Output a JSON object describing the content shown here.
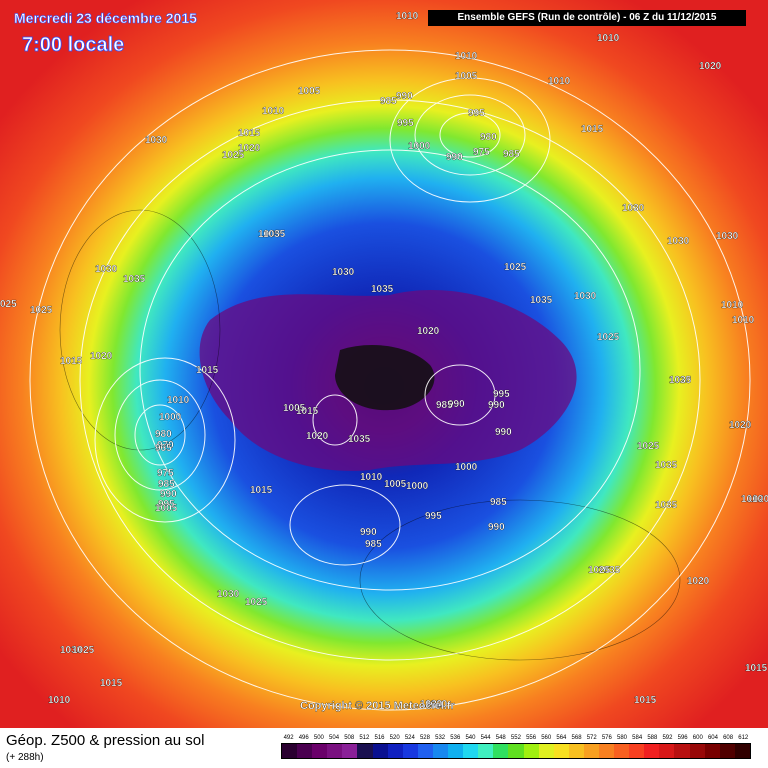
{
  "header": {
    "date": "Mercredi 23 décembre 2015",
    "local_time": "7:00 locale",
    "run_info": "Ensemble GEFS  (Run de contrôle)  -  06 Z du 11/12/2015"
  },
  "footer": {
    "title": "Géop. Z500 & pression au sol",
    "forecast_range": "(+ 288h)",
    "copyright": "Copyright © 2015 Meteociel.fr"
  },
  "scale": {
    "labels": [
      "492",
      "496",
      "500",
      "504",
      "508",
      "512",
      "516",
      "520",
      "524",
      "528",
      "532",
      "536",
      "540",
      "544",
      "548",
      "552",
      "556",
      "560",
      "564",
      "568",
      "572",
      "576",
      "580",
      "584",
      "588",
      "592",
      "596",
      "600",
      "604",
      "608",
      "612"
    ],
    "colors": [
      "#2a0030",
      "#4a0050",
      "#6a006a",
      "#7a1080",
      "#8a2098",
      "#1a1050",
      "#0a1090",
      "#1020c0",
      "#1838e0",
      "#2060f0",
      "#1888f0",
      "#10b0f0",
      "#20d8f0",
      "#40f0c0",
      "#30e060",
      "#60e020",
      "#a0f010",
      "#e0f020",
      "#f8e020",
      "#f8c020",
      "#f8a020",
      "#f88020",
      "#f86020",
      "#f84020",
      "#f02020",
      "#d81818",
      "#b81010",
      "#980808",
      "#780000",
      "#500000",
      "#300000"
    ]
  },
  "pressure_labels": [
    {
      "text": "1030"
    },
    {
      "text": "1010"
    },
    {
      "text": "1005"
    },
    {
      "text": "1015"
    },
    {
      "text": "1025"
    },
    {
      "text": "1020"
    },
    {
      "text": "1010"
    },
    {
      "text": "1005"
    },
    {
      "text": "1010"
    },
    {
      "text": "1010"
    },
    {
      "text": "990"
    },
    {
      "text": "985"
    },
    {
      "text": "995"
    },
    {
      "text": "1000"
    },
    {
      "text": "980"
    },
    {
      "text": "975"
    },
    {
      "text": "985"
    },
    {
      "text": "990"
    },
    {
      "text": "995"
    },
    {
      "text": "1015"
    },
    {
      "text": "1030"
    },
    {
      "text": "1030"
    },
    {
      "text": "1030"
    },
    {
      "text": "1020"
    },
    {
      "text": "1010"
    },
    {
      "text": "1005"
    },
    {
      "text": "1005"
    },
    {
      "text": "1035"
    },
    {
      "text": "1030"
    },
    {
      "text": "1025"
    },
    {
      "text": "1035"
    },
    {
      "text": "1030"
    },
    {
      "text": "1010"
    },
    {
      "text": "1010"
    },
    {
      "text": "1020"
    },
    {
      "text": "1035"
    },
    {
      "text": "1020"
    },
    {
      "text": "1035"
    },
    {
      "text": "1025"
    },
    {
      "text": "1035"
    },
    {
      "text": "1020"
    },
    {
      "text": "1010"
    },
    {
      "text": "1020"
    },
    {
      "text": "1025"
    },
    {
      "text": "1020"
    },
    {
      "text": "025"
    },
    {
      "text": "1025"
    },
    {
      "text": "1020"
    },
    {
      "text": "1015"
    },
    {
      "text": "1030"
    },
    {
      "text": "1035"
    },
    {
      "text": "1015"
    },
    {
      "text": "1010"
    },
    {
      "text": "1000"
    },
    {
      "text": "980"
    },
    {
      "text": "970"
    },
    {
      "text": "965"
    },
    {
      "text": "975"
    },
    {
      "text": "985"
    },
    {
      "text": "990"
    },
    {
      "text": "995"
    },
    {
      "text": "1005"
    },
    {
      "text": "1015"
    },
    {
      "text": "1015"
    },
    {
      "text": "1020"
    },
    {
      "text": "1035"
    },
    {
      "text": "1005"
    },
    {
      "text": "1010"
    },
    {
      "text": "1005"
    },
    {
      "text": "1000"
    },
    {
      "text": "995"
    },
    {
      "text": "985"
    },
    {
      "text": "990"
    },
    {
      "text": "985"
    },
    {
      "text": "990"
    },
    {
      "text": "995"
    },
    {
      "text": "990"
    },
    {
      "text": "990"
    },
    {
      "text": "1000"
    },
    {
      "text": "985"
    },
    {
      "text": "990"
    },
    {
      "text": "1030"
    },
    {
      "text": "1025"
    },
    {
      "text": "1030"
    },
    {
      "text": "1025"
    },
    {
      "text": "1015"
    },
    {
      "text": "1010"
    },
    {
      "text": "1020"
    },
    {
      "text": "1015"
    },
    {
      "text": "1035"
    },
    {
      "text": "1020"
    },
    {
      "text": "1020"
    },
    {
      "text": "1015"
    },
    {
      "text": "1035"
    },
    {
      "text": "1025"
    }
  ]
}
